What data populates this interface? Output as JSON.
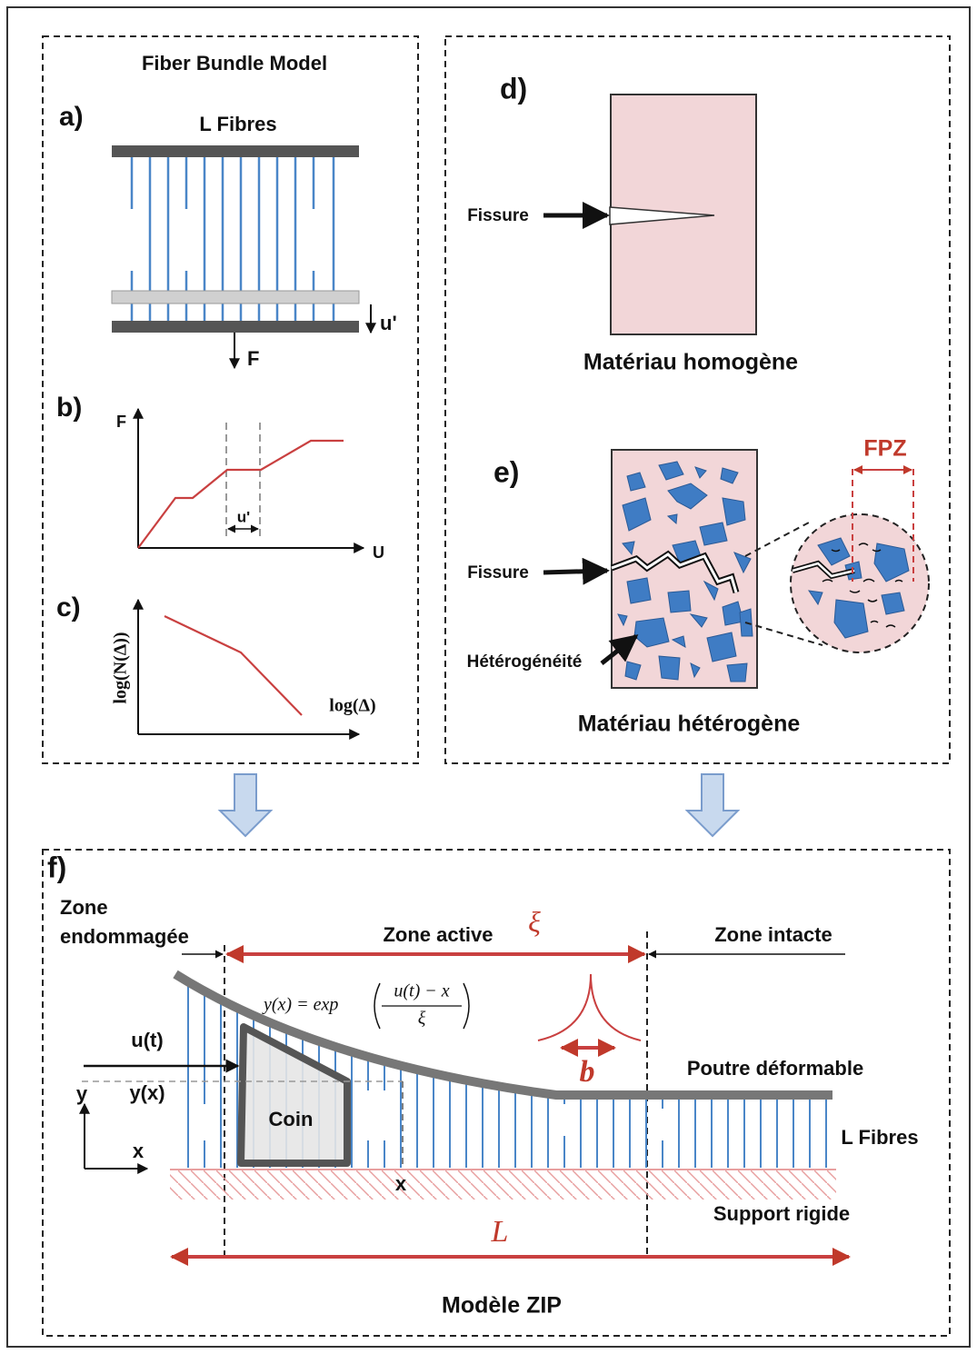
{
  "fbm": {
    "title": "Fiber Bundle Model",
    "a": {
      "label": "a)",
      "fibres": "L Fibres",
      "displacement": "u'",
      "force": "F"
    },
    "b": {
      "label": "b)",
      "y_axis": "F",
      "x_axis": "U",
      "step": "u'"
    },
    "c": {
      "label": "c)",
      "y_axis": "log(N(Δ))",
      "x_axis": "log(Δ)"
    }
  },
  "materials": {
    "d": {
      "label": "d)",
      "crack": "Fissure",
      "caption": "Matériau homogène"
    },
    "e": {
      "label": "e)",
      "fpz": "FPZ",
      "crack": "Fissure",
      "heterogeneity": "Hétérogénéité",
      "caption": "Matériau hétérogène"
    }
  },
  "zip": {
    "label": "f)",
    "damaged_zone": [
      "Zone",
      "endommagée"
    ],
    "active_zone": "Zone active",
    "xi": "ξ",
    "intact_zone": "Zone intacte",
    "formula": {
      "lhs": "y(x) = exp",
      "numerator": "u(t) − x",
      "denominator": "ξ"
    },
    "displacement": "u(t)",
    "y_axis": "y",
    "deflection": "y(x)",
    "x_axis": "x",
    "wedge": "Coin",
    "position": "x",
    "b": "b",
    "beam": "Poutre déformable",
    "fibres": "L Fibres",
    "support": "Support rigide",
    "length": "L",
    "caption": "Modèle ZIP"
  }
}
